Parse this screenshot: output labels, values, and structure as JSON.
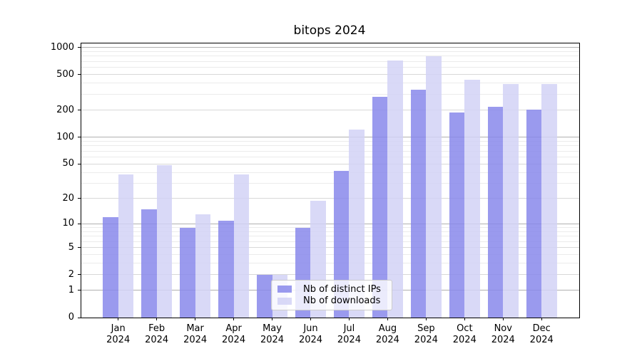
{
  "title": "bitops 2024",
  "chart_data": {
    "type": "bar",
    "title": "bitops 2024",
    "categories": [
      "Jan 2024",
      "Feb 2024",
      "Mar 2024",
      "Apr 2024",
      "May 2024",
      "Jun 2024",
      "Jul 2024",
      "Aug 2024",
      "Sep 2024",
      "Oct 2024",
      "Nov 2024",
      "Dec 2024"
    ],
    "series": [
      {
        "name": "Nb of distinct IPs",
        "color": "#9a9aee",
        "fill": "rgba(136,136,235,0.85)",
        "values": [
          12,
          15,
          9,
          11,
          2,
          9,
          42,
          283,
          337,
          188,
          219,
          202
        ]
      },
      {
        "name": "Nb of downloads",
        "color": "#d9d9f8",
        "fill": "rgba(210,210,246,0.85)",
        "values": [
          38,
          48,
          13,
          38,
          2,
          19,
          122,
          723,
          805,
          440,
          391,
          391
        ]
      }
    ],
    "yscale": "log10(value+1)",
    "y_ticks": [
      0,
      1,
      2,
      5,
      10,
      20,
      50,
      100,
      200,
      500,
      1000
    ],
    "y_decade_ticks": [
      1,
      10,
      100,
      1000
    ],
    "ylim": [
      0,
      1110
    ],
    "xlabel": "",
    "ylabel": "",
    "grid": true,
    "legend_position": "lower center"
  }
}
